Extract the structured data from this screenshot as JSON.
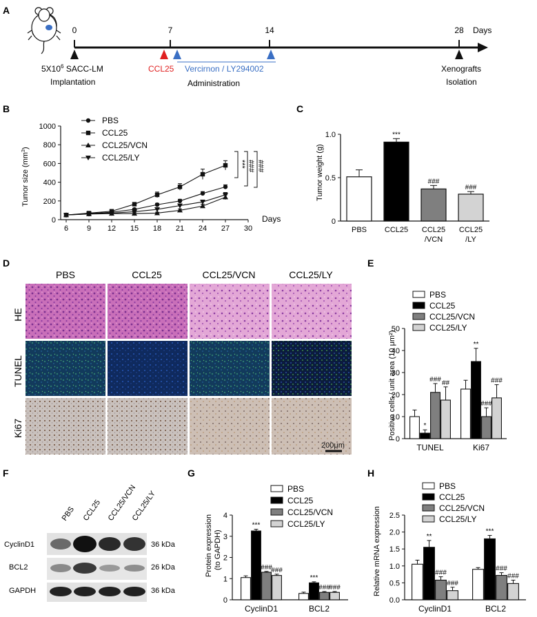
{
  "panels": {
    "A": "A",
    "B": "B",
    "C": "C",
    "D": "D",
    "E": "E",
    "F": "F",
    "G": "G",
    "H": "H"
  },
  "timeline": {
    "ticks": [
      "0",
      "7",
      "14",
      "28"
    ],
    "unit": "Days",
    "dose_html": "5X10<tspan baseline-shift='super' font-size='8'>6</tspan> SACC-LM",
    "dose_prefix": "5X10",
    "dose_sup": "6",
    "dose_suffix": " SACC-LM",
    "implantation": "Implantation",
    "ccl25": "CCL25",
    "drug": "Vercirnon / LY294002",
    "administration": "Administration",
    "xeno1": "Xenografts",
    "xeno2": "Isolation",
    "colors": {
      "ccl25": "#e02020",
      "drug": "#3a6fc4",
      "black": "#111111"
    }
  },
  "panel_B": {
    "ylabel_prefix": "Tumor size  (mm",
    "ylabel_sup": "3",
    "ylabel_suffix": ")",
    "xlabel": "Days",
    "sig": [
      "***",
      "###",
      "###"
    ]
  },
  "panel_C": {
    "ylabel": "Tumor weight (g)"
  },
  "panel_D": {
    "columns": [
      "PBS",
      "CCL25",
      "CCL25/VCN",
      "CCL25/LY"
    ],
    "rows": [
      "HE",
      "TUNEL",
      "Ki67"
    ],
    "scalebar": "200μm"
  },
  "panel_E": {
    "ylabel": "Positive cells / unit area (10 μm²)"
  },
  "panel_F": {
    "lanes": [
      "PBS",
      "CCL25",
      "CCL25/VCN",
      "CCL25/LY"
    ],
    "proteins": [
      "CyclinD1",
      "BCL2",
      "GAPDH"
    ],
    "sizes": [
      "36 kDa",
      "26 kDa",
      "36 kDa"
    ]
  },
  "panel_G": {
    "ylabel1": "Protein expression",
    "ylabel2": "(to GAPDH)"
  },
  "panel_H": {
    "ylabel": "Relative mRNA expression"
  },
  "chart_data": [
    {
      "id": "B",
      "type": "line",
      "x": [
        6,
        9,
        12,
        15,
        18,
        21,
        24,
        27
      ],
      "xticks": [
        6,
        9,
        12,
        15,
        18,
        21,
        24,
        27,
        30
      ],
      "yticks": [
        0,
        200,
        400,
        600,
        800,
        1000
      ],
      "xlim": [
        6,
        30
      ],
      "ylim": [
        0,
        1000
      ],
      "xlabel": "Days",
      "ylabel": "Tumor size (mm3)",
      "legend_position": "top-left",
      "series": [
        {
          "name": "PBS",
          "marker": "circle",
          "values": [
            50,
            65,
            80,
            110,
            160,
            200,
            280,
            350
          ],
          "err": [
            8,
            10,
            10,
            12,
            15,
            18,
            20,
            22
          ]
        },
        {
          "name": "CCL25",
          "marker": "square",
          "values": [
            50,
            70,
            90,
            165,
            265,
            350,
            485,
            580
          ],
          "err": [
            8,
            10,
            12,
            18,
            30,
            35,
            55,
            50
          ]
        },
        {
          "name": "CCL25/VCN",
          "marker": "triangle-up",
          "values": [
            50,
            60,
            65,
            65,
            70,
            100,
            145,
            240
          ],
          "err": [
            8,
            8,
            8,
            10,
            10,
            15,
            20,
            25
          ]
        },
        {
          "name": "CCL25/LY",
          "marker": "triangle-down",
          "values": [
            50,
            62,
            70,
            85,
            110,
            150,
            190,
            265
          ],
          "err": [
            8,
            8,
            10,
            10,
            15,
            18,
            20,
            25
          ]
        }
      ]
    },
    {
      "id": "C",
      "type": "bar",
      "categories": [
        "PBS",
        "CCL25",
        "CCL25\n/VCN",
        "CCL25\n/LY"
      ],
      "values": [
        0.51,
        0.91,
        0.37,
        0.31
      ],
      "err": [
        0.08,
        0.04,
        0.04,
        0.03
      ],
      "sig": [
        "",
        "***",
        "###",
        "###"
      ],
      "fills": [
        "#ffffff",
        "#000000",
        "#7f7f7f",
        "#d3d3d3"
      ],
      "ylabel": "Tumor weight (g)",
      "ylim": [
        0,
        1.0
      ],
      "yticks": [
        "0",
        "0.5",
        "1.0"
      ]
    },
    {
      "id": "E",
      "type": "bar",
      "categories": [
        "TUNEL",
        "Ki67"
      ],
      "series": [
        {
          "name": "PBS",
          "values": [
            10,
            22.5
          ],
          "err": [
            3,
            4
          ],
          "sig": [
            "",
            ""
          ]
        },
        {
          "name": "CCL25",
          "values": [
            2.5,
            35
          ],
          "err": [
            1.5,
            6
          ],
          "sig": [
            "*",
            "**"
          ]
        },
        {
          "name": "CCL25/VCN",
          "values": [
            21,
            10
          ],
          "err": [
            4,
            4
          ],
          "sig": [
            "###",
            "###"
          ]
        },
        {
          "name": "CCL25/LY",
          "values": [
            17.5,
            18.5
          ],
          "err": [
            6,
            6
          ],
          "sig": [
            "##",
            "###"
          ]
        }
      ],
      "fills": [
        "#ffffff",
        "#000000",
        "#7f7f7f",
        "#d3d3d3"
      ],
      "ylabel": "Positive cells / unit area (10 μm²)",
      "ylim": [
        0,
        50
      ],
      "yticks": [
        0,
        10,
        20,
        30,
        40,
        50
      ],
      "legend_position": "top-left"
    },
    {
      "id": "G",
      "type": "bar",
      "categories": [
        "CyclinD1",
        "BCL2"
      ],
      "series": [
        {
          "name": "PBS",
          "values": [
            1.05,
            0.3
          ],
          "err": [
            0.08,
            0.06
          ],
          "sig": [
            "",
            ""
          ]
        },
        {
          "name": "CCL25",
          "values": [
            3.25,
            0.8
          ],
          "err": [
            0.08,
            0.05
          ],
          "sig": [
            "***",
            "***"
          ]
        },
        {
          "name": "CCL25/VCN",
          "values": [
            1.3,
            0.35
          ],
          "err": [
            0.04,
            0.04
          ],
          "sig": [
            "###",
            "###"
          ]
        },
        {
          "name": "CCL25/LY",
          "values": [
            1.15,
            0.35
          ],
          "err": [
            0.06,
            0.04
          ],
          "sig": [
            "###",
            "###"
          ]
        }
      ],
      "fills": [
        "#ffffff",
        "#000000",
        "#7f7f7f",
        "#d3d3d3"
      ],
      "ylabel": "Protein expression (to GAPDH)",
      "ylim": [
        0,
        4
      ],
      "yticks": [
        0,
        1,
        2,
        3,
        4
      ],
      "legend_position": "top-right"
    },
    {
      "id": "H",
      "type": "bar",
      "categories": [
        "CyclinD1",
        "BCL2"
      ],
      "series": [
        {
          "name": "PBS",
          "values": [
            1.05,
            0.9
          ],
          "err": [
            0.12,
            0.05
          ],
          "sig": [
            "",
            ""
          ]
        },
        {
          "name": "CCL25",
          "values": [
            1.55,
            1.8
          ],
          "err": [
            0.2,
            0.1
          ],
          "sig": [
            "**",
            "***"
          ]
        },
        {
          "name": "CCL25/VCN",
          "values": [
            0.58,
            0.72
          ],
          "err": [
            0.1,
            0.08
          ],
          "sig": [
            "###",
            "###"
          ]
        },
        {
          "name": "CCL25/LY",
          "values": [
            0.27,
            0.48
          ],
          "err": [
            0.1,
            0.1
          ],
          "sig": [
            "###",
            "###"
          ]
        }
      ],
      "fills": [
        "#ffffff",
        "#000000",
        "#7f7f7f",
        "#d3d3d3"
      ],
      "ylabel": "Relative mRNA expression",
      "ylim": [
        0,
        2.5
      ],
      "yticks": [
        "0.0",
        "0.5",
        "1.0",
        "1.5",
        "2.0",
        "2.5"
      ],
      "legend_position": "top-right"
    }
  ]
}
